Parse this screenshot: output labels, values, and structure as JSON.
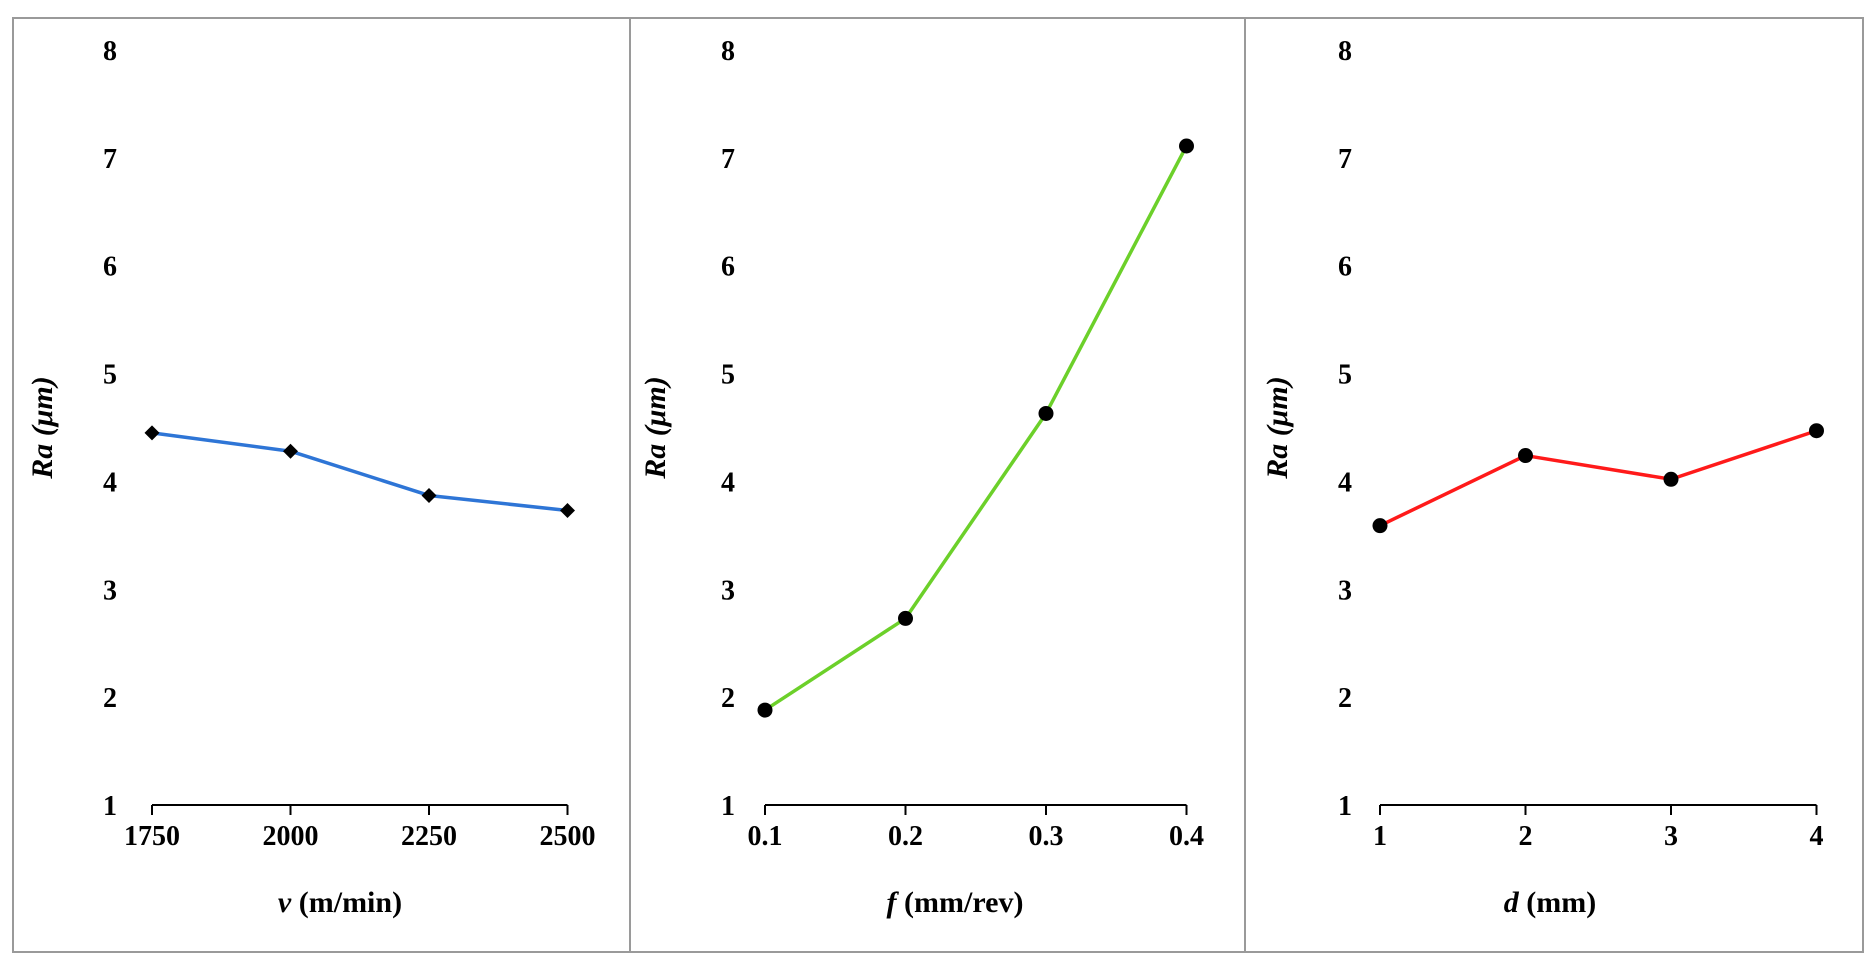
{
  "chart_data": [
    {
      "type": "line",
      "title": "",
      "xlabel_var": "v",
      "xlabel_unit": " (m/min)",
      "ylabel": "Ra (μm)",
      "x": [
        "1750",
        "2000",
        "2250",
        "2500"
      ],
      "values": [
        4.45,
        4.28,
        3.87,
        3.73
      ],
      "ylim": [
        1,
        8
      ],
      "yticks": [
        "1",
        "2",
        "3",
        "4",
        "5",
        "6",
        "7",
        "8"
      ],
      "color": "#2e75d6",
      "marker": "diamond",
      "grid": false
    },
    {
      "type": "line",
      "title": "",
      "xlabel_var": "f",
      "xlabel_unit": " (mm/rev)",
      "ylabel": "Ra (μm)",
      "x": [
        "0.1",
        "0.2",
        "0.3",
        "0.4"
      ],
      "values": [
        1.88,
        2.73,
        4.63,
        7.11
      ],
      "ylim": [
        1,
        8
      ],
      "yticks": [
        "1",
        "2",
        "3",
        "4",
        "5",
        "6",
        "7",
        "8"
      ],
      "color": "#6cd02a",
      "marker": "circle",
      "grid": false
    },
    {
      "type": "line",
      "title": "",
      "xlabel_var": "d",
      "xlabel_unit": " (mm)",
      "ylabel": "Ra (μm)",
      "x": [
        "1",
        "2",
        "3",
        "4"
      ],
      "values": [
        3.59,
        4.24,
        4.02,
        4.47
      ],
      "ylim": [
        1,
        8
      ],
      "yticks": [
        "1",
        "2",
        "3",
        "4",
        "5",
        "6",
        "7",
        "8"
      ],
      "color": "#ff1a1a",
      "marker": "circle",
      "grid": false
    }
  ]
}
